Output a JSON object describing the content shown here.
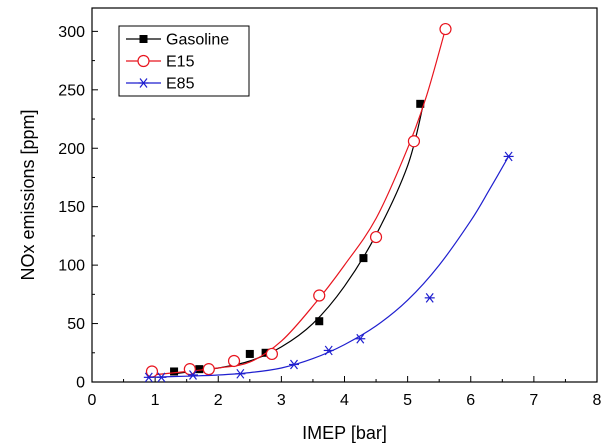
{
  "chart_data": {
    "type": "scatter",
    "title": "",
    "xlabel": "IMEP [bar]",
    "ylabel": "NOx emissions [ppm]",
    "xlim": [
      0,
      8
    ],
    "ylim": [
      0,
      320
    ],
    "x_ticks": [
      0,
      1,
      2,
      3,
      4,
      5,
      6,
      7,
      8
    ],
    "y_ticks": [
      0,
      50,
      100,
      150,
      200,
      250,
      300
    ],
    "grid": false,
    "legend_position": "top-left",
    "series": [
      {
        "name": "Gasoline",
        "color": "#000000",
        "marker": "filled-square",
        "points": [
          [
            1.3,
            9
          ],
          [
            1.7,
            11
          ],
          [
            2.5,
            24
          ],
          [
            2.75,
            25
          ],
          [
            3.6,
            52
          ],
          [
            4.3,
            106
          ],
          [
            5.2,
            238
          ]
        ],
        "fit": [
          [
            1.3,
            7
          ],
          [
            2.0,
            12
          ],
          [
            2.5,
            18
          ],
          [
            3.0,
            30
          ],
          [
            3.5,
            50
          ],
          [
            4.0,
            82
          ],
          [
            4.5,
            126
          ],
          [
            5.0,
            185
          ],
          [
            5.25,
            238
          ]
        ]
      },
      {
        "name": "E15",
        "color": "#e8141e",
        "marker": "open-circle",
        "points": [
          [
            0.95,
            9
          ],
          [
            1.55,
            11
          ],
          [
            1.85,
            11
          ],
          [
            2.25,
            18
          ],
          [
            2.85,
            24
          ],
          [
            3.6,
            74
          ],
          [
            4.5,
            124
          ],
          [
            5.1,
            206
          ],
          [
            5.6,
            302
          ]
        ],
        "fit": [
          [
            0.95,
            6
          ],
          [
            1.5,
            9
          ],
          [
            2.0,
            12
          ],
          [
            2.5,
            17
          ],
          [
            3.0,
            35
          ],
          [
            3.5,
            65
          ],
          [
            4.0,
            100
          ],
          [
            4.5,
            140
          ],
          [
            5.0,
            200
          ],
          [
            5.3,
            245
          ],
          [
            5.6,
            302
          ]
        ]
      },
      {
        "name": "E85",
        "color": "#1f1fcf",
        "marker": "asterisk",
        "points": [
          [
            0.9,
            4
          ],
          [
            1.1,
            4
          ],
          [
            1.6,
            6
          ],
          [
            2.35,
            7
          ],
          [
            3.2,
            15
          ],
          [
            3.75,
            27
          ],
          [
            4.25,
            37
          ],
          [
            5.35,
            72
          ],
          [
            6.6,
            193
          ]
        ],
        "fit": [
          [
            0.9,
            4
          ],
          [
            1.5,
            5
          ],
          [
            2.0,
            6
          ],
          [
            2.5,
            8
          ],
          [
            3.0,
            12
          ],
          [
            3.5,
            20
          ],
          [
            4.0,
            32
          ],
          [
            4.5,
            48
          ],
          [
            5.0,
            70
          ],
          [
            5.5,
            100
          ],
          [
            6.0,
            138
          ],
          [
            6.3,
            165
          ],
          [
            6.6,
            193
          ]
        ]
      }
    ]
  }
}
